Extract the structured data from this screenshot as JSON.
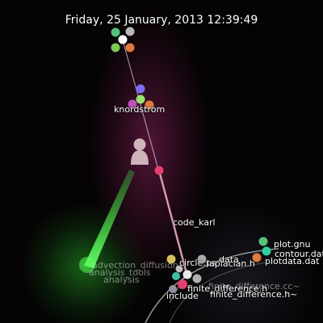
{
  "timestamp": "Friday, 25 January, 2013 12:39:49",
  "users": [
    {
      "name": "knordstrom"
    },
    {
      "name": "code_karl"
    }
  ],
  "files": {
    "plot_gnu": "plot.gnu",
    "contour_dat": "contour.dat",
    "plotdata_dat": "plotdata.dat",
    "circle_ps": "circle.ps",
    "laplacian_h": "laplacian.h",
    "data": "data",
    "finite_difference_h": "finite_difference.h",
    "include": "include",
    "finite_difference_h_tilde": "finite_difference.h~",
    "finite_difference_cc_tilde": "finite_difference.cc~",
    "ghost_1": "advection_diffusion",
    "ghost_2": "analysis_tools",
    "ghost_3": "analysis"
  },
  "colors": {
    "background": "#050304",
    "user_beam": "#e0a0b0",
    "activity_beam": "#44ff44",
    "branch_line": "#dddddd"
  }
}
